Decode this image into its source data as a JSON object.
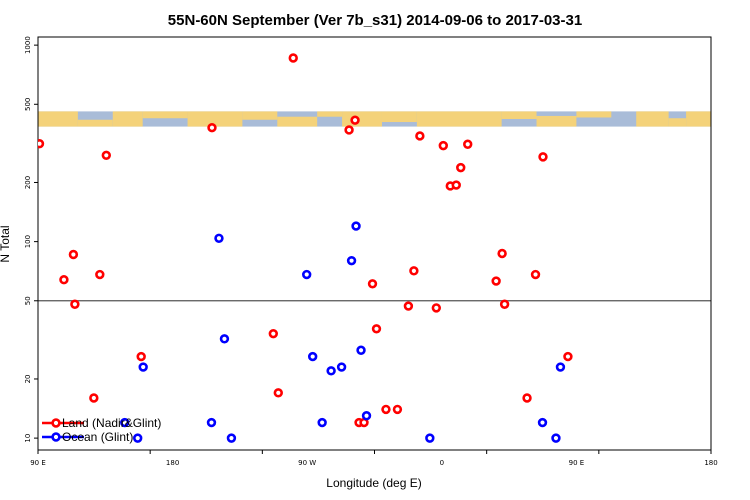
{
  "chart_data": {
    "type": "scatter",
    "title": "55N-60N September (Ver 7b_s31)   2014-09-06 to 2017-03-31",
    "xlabel": "Longitude (deg E)",
    "ylabel": "N Total",
    "xlim": [
      -90,
      180
    ],
    "ylim": [
      8.7,
      1100
    ],
    "yscale": "log",
    "reference_line": 50,
    "x_ticks": [
      -90,
      -45,
      0,
      45,
      90,
      135,
      180
    ],
    "x_tick_labels": [
      "90 E",
      "180",
      "90 W",
      "0",
      "90 E",
      "180"
    ],
    "x_tick_labels_at": [
      -90,
      -36,
      18,
      72,
      126,
      180
    ],
    "y_ticks": [
      10,
      20,
      50,
      100,
      200,
      500,
      1000
    ],
    "y_tick_labels": [
      "10",
      "20",
      "50",
      "100",
      "200",
      "500",
      "1000"
    ],
    "map_strip_y": [
      385,
      460
    ],
    "colors": {
      "land": "#ff0000",
      "ocean": "#0000ff",
      "map_ocean": "#a9bcd8",
      "map_land": "#f4d27a",
      "refline": "#555555"
    },
    "legend": {
      "position": "bottom-left",
      "entries": [
        "Land (Nadir&Glint)",
        "Ocean (Glint)"
      ]
    },
    "series": [
      {
        "name": "Land (Nadir&Glint)",
        "color": "#ff0000",
        "points": [
          [
            -89.4,
            315
          ],
          [
            -79.6,
            64
          ],
          [
            -75.8,
            86
          ],
          [
            -75.2,
            48
          ],
          [
            -67.6,
            16
          ],
          [
            -65.2,
            68
          ],
          [
            -62.6,
            275
          ],
          [
            -48.6,
            26
          ],
          [
            -20.2,
            380
          ],
          [
            4.4,
            34
          ],
          [
            6.4,
            17
          ],
          [
            12.4,
            860
          ],
          [
            34.8,
            370
          ],
          [
            37.2,
            415
          ],
          [
            38.8,
            12
          ],
          [
            40.8,
            12
          ],
          [
            44.2,
            61
          ],
          [
            45.8,
            36
          ],
          [
            49.6,
            14
          ],
          [
            54.2,
            14
          ],
          [
            58.6,
            47
          ],
          [
            60.8,
            71
          ],
          [
            63.2,
            345
          ],
          [
            69.8,
            46
          ],
          [
            72.6,
            308
          ],
          [
            75.4,
            192
          ],
          [
            77.8,
            194
          ],
          [
            79.6,
            238
          ],
          [
            82.4,
            313
          ],
          [
            93.8,
            63
          ],
          [
            96.2,
            87
          ],
          [
            97.2,
            48
          ],
          [
            106.2,
            16
          ],
          [
            109.6,
            68
          ],
          [
            112.6,
            270
          ],
          [
            122.6,
            26
          ]
        ]
      },
      {
        "name": "Ocean (Glint)",
        "color": "#0000ff",
        "points": [
          [
            -55.2,
            12
          ],
          [
            -50.0,
            10
          ],
          [
            -47.8,
            23
          ],
          [
            -20.4,
            12
          ],
          [
            -17.4,
            104
          ],
          [
            -15.2,
            32
          ],
          [
            -12.4,
            10
          ],
          [
            17.8,
            68
          ],
          [
            20.2,
            26
          ],
          [
            24.0,
            12
          ],
          [
            27.6,
            22
          ],
          [
            31.8,
            23
          ],
          [
            35.8,
            80
          ],
          [
            37.6,
            120
          ],
          [
            39.6,
            28
          ],
          [
            41.8,
            13
          ],
          [
            67.2,
            10
          ],
          [
            112.4,
            12
          ],
          [
            117.8,
            10
          ],
          [
            119.6,
            23
          ]
        ]
      }
    ]
  }
}
